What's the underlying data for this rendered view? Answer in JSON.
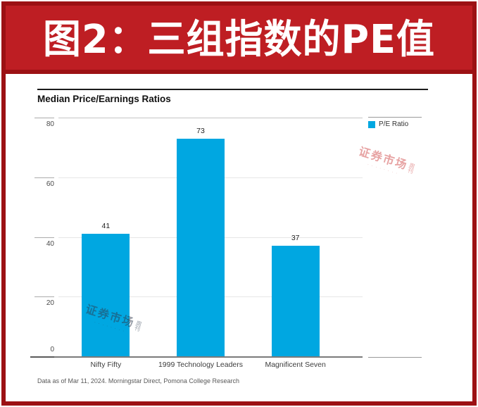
{
  "banner": {
    "title": "图2：三组指数的PE值",
    "bg_color": "#be1e23",
    "border_color": "#9c1114",
    "text_color": "#ffffff"
  },
  "chart": {
    "title": "Median Price/Earnings Ratios",
    "legend": {
      "label": "P/E Ratio",
      "color": "#00a7e1"
    },
    "footnote": "Data as of Mar 11, 2024. Morningstar Direct, Pomona College Research"
  },
  "chart_data": {
    "type": "bar",
    "title": "Median Price/Earnings Ratios",
    "categories": [
      "Nifty Fifty",
      "1999 Technology Leaders",
      "Magnificent Seven"
    ],
    "series": [
      {
        "name": "P/E Ratio",
        "values": [
          41,
          73,
          37
        ],
        "color": "#00a7e1"
      }
    ],
    "xlabel": "",
    "ylabel": "",
    "ylim": [
      0,
      80
    ],
    "y_ticks": [
      0,
      20,
      40,
      60,
      80
    ],
    "grid": true,
    "legend_position": "top-right",
    "value_labels": true,
    "source_note": "Data as of Mar 11, 2024. Morningstar Direct, Pomona College Research"
  },
  "watermark": {
    "main": "证券市场",
    "sub": "周\n刊",
    "tagline": "········"
  }
}
